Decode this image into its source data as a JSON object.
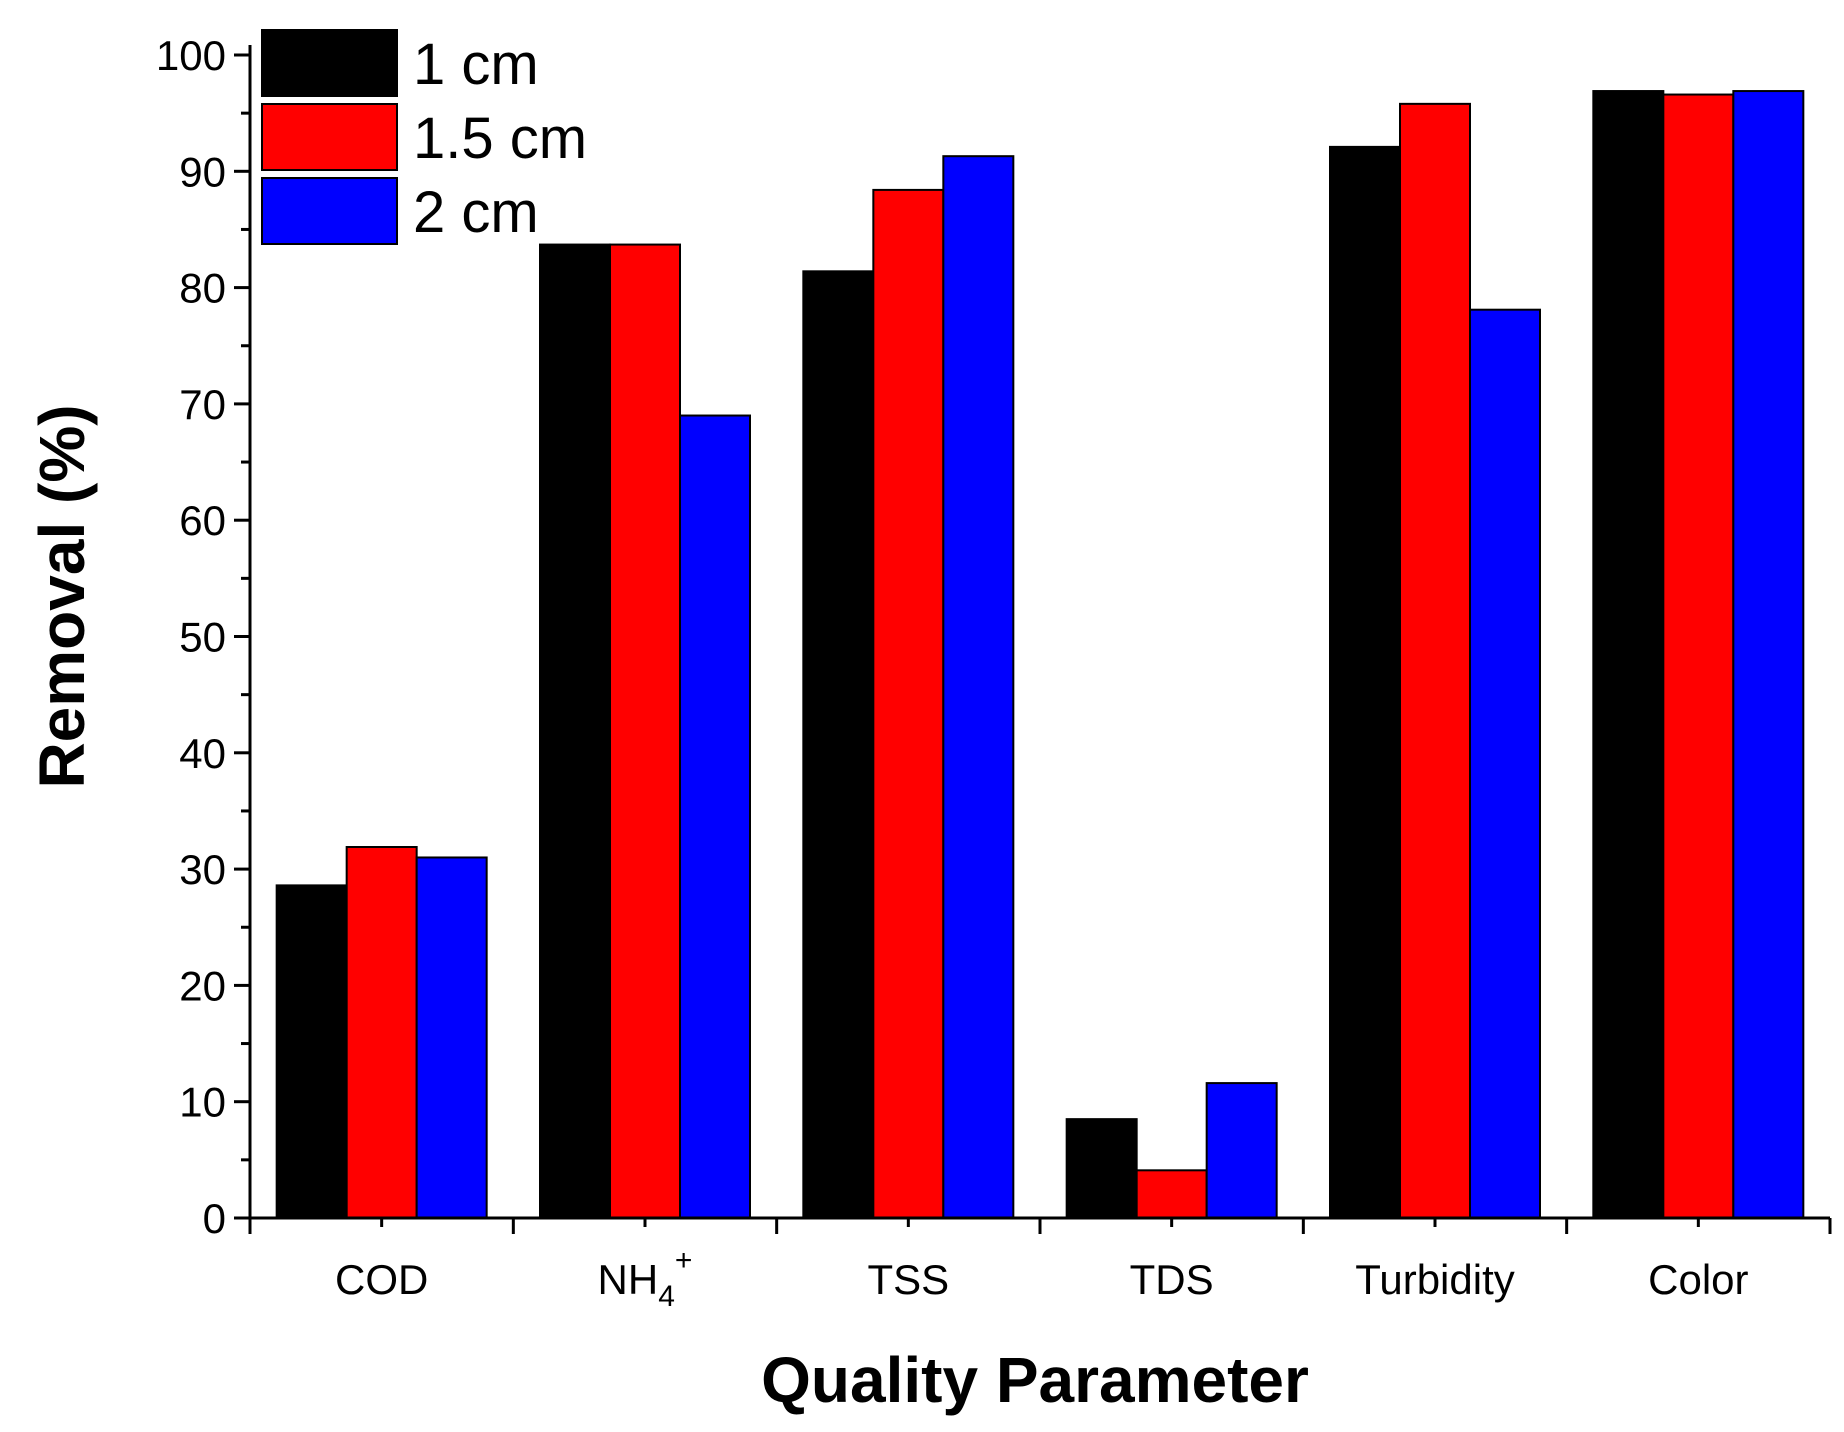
{
  "chart_data": {
    "type": "bar",
    "title": "",
    "xlabel": "Quality Parameter",
    "ylabel": "Removal (%)",
    "ylim": [
      0,
      100
    ],
    "yticks": [
      0,
      10,
      20,
      30,
      40,
      50,
      60,
      70,
      80,
      90,
      100
    ],
    "ytick_labels": [
      "0",
      "10",
      "20",
      "30",
      "40",
      "50",
      "60",
      "70",
      "80",
      "90",
      "100"
    ],
    "categories": [
      "COD",
      "NH4+",
      "TSS",
      "TDS",
      "Turbidity",
      "Color"
    ],
    "category_labels": [
      {
        "main": "COD",
        "sub": "",
        "sup": ""
      },
      {
        "main": "NH",
        "sub": "4",
        "sup": "+"
      },
      {
        "main": "TSS",
        "sub": "",
        "sup": ""
      },
      {
        "main": "TDS",
        "sub": "",
        "sup": ""
      },
      {
        "main": "Turbidity",
        "sub": "",
        "sup": ""
      },
      {
        "main": "Color",
        "sub": "",
        "sup": ""
      }
    ],
    "series": [
      {
        "name": "1 cm",
        "color": "#000000",
        "values": [
          28.6,
          83.7,
          81.4,
          8.5,
          92.1,
          96.9
        ]
      },
      {
        "name": "1.5 cm",
        "color": "#ff0000",
        "values": [
          31.9,
          83.7,
          88.4,
          4.1,
          95.8,
          96.6
        ]
      },
      {
        "name": "2 cm",
        "color": "#0000ff",
        "values": [
          31.0,
          69.0,
          91.3,
          11.6,
          78.1,
          96.9
        ]
      }
    ],
    "legend_position": "top-left",
    "grid": false
  }
}
